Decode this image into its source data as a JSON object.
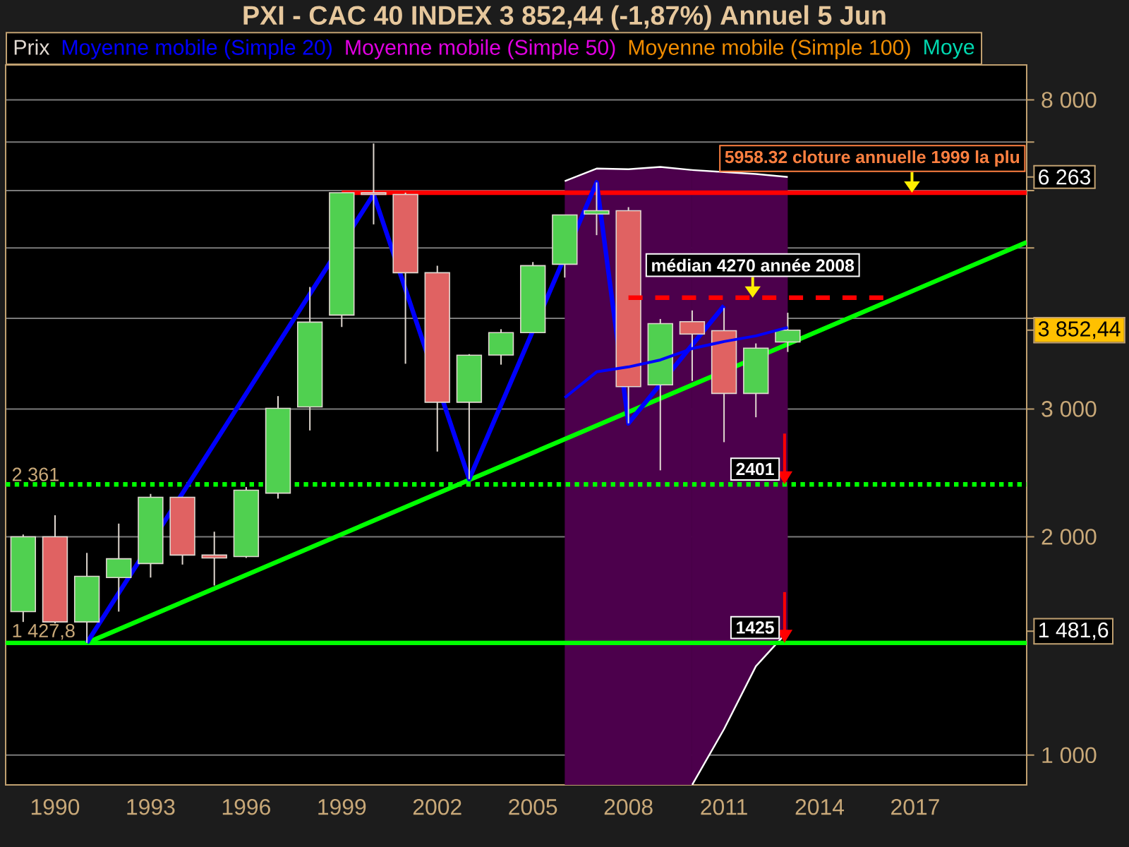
{
  "chart_data": {
    "type": "candlestick",
    "title": "PXI - CAC 40 INDEX    3 852,44 (-1,87%)    Annuel  5 Jun",
    "x": [
      1989,
      1990,
      1991,
      1992,
      1993,
      1994,
      1995,
      1996,
      1997,
      1998,
      1999,
      2000,
      2001,
      2002,
      2003,
      2004,
      2005,
      2006,
      2007,
      2008,
      2009,
      2010,
      2011,
      2012,
      2013
    ],
    "series": [
      {
        "name": "Prix",
        "color": "#e0d8d0",
        "colors": [
          "#50d050",
          "#e06262",
          "#50d050",
          "#50d050",
          "#50d050",
          "#e06262",
          "#e06262",
          "#50d050",
          "#50d050",
          "#50d050",
          "#50d050",
          "#e06262",
          "#e06262",
          "#e06262",
          "#50d050",
          "#50d050",
          "#50d050",
          "#50d050",
          "#50d050",
          "#e06262",
          "#50d050",
          "#e06262",
          "#e06262",
          "#50d050",
          "#50d050"
        ],
        "ohlc": [
          [
            1577,
            2014,
            1526,
            2000
          ],
          [
            2000,
            2141,
            1519,
            1526
          ],
          [
            1526,
            1900,
            1428,
            1764
          ],
          [
            1757,
            2085,
            1577,
            1865
          ],
          [
            1837,
            2291,
            1757,
            2267
          ],
          [
            2267,
            2270,
            1831,
            1887
          ],
          [
            1887,
            2032,
            1713,
            1870
          ],
          [
            1878,
            2342,
            1870,
            2318
          ],
          [
            2297,
            3125,
            2257,
            3006
          ],
          [
            3020,
            4418,
            2802,
            3952
          ],
          [
            4041,
            5960,
            3892,
            5958.32
          ],
          [
            5958,
            6966,
            5389,
            5926
          ],
          [
            5926,
            5960,
            3463,
            4623
          ],
          [
            4623,
            4727,
            2620,
            3065
          ],
          [
            3065,
            3570,
            2401,
            3558
          ],
          [
            3560,
            3864,
            3453,
            3823
          ],
          [
            3823,
            4782,
            3823,
            4727
          ],
          [
            4749,
            5553,
            4552,
            5553
          ],
          [
            5568,
            6157,
            5208,
            5628
          ],
          [
            5628,
            5693,
            2866,
            3220
          ],
          [
            3238,
            3992,
            2469,
            3933
          ],
          [
            3957,
            4101,
            3279,
            3805
          ],
          [
            3846,
            4133,
            2700,
            3152
          ],
          [
            3152,
            3694,
            2922,
            3639
          ],
          [
            3711,
            4071,
            3595,
            3852.44
          ]
        ]
      },
      {
        "name": "Moyenne mobile (Simple 20)",
        "type": "line",
        "color": "#0000ff",
        "x": [
          2006,
          2007,
          2008,
          2009,
          2010,
          2011,
          2012,
          2013
        ],
        "values": [
          3109,
          3375,
          3428,
          3505,
          3634,
          3716,
          3783,
          3886
        ],
        "upper": [
          null,
          null,
          null,
          null,
          6404,
          6362,
          6324,
          6263
        ],
        "lower": [
          null,
          null,
          null,
          null,
          910,
          1086,
          1326,
          1481.6
        ]
      },
      {
        "type": "area",
        "color": "#4c004c",
        "x": [
          2006,
          2007,
          2008,
          2009,
          2010
        ],
        "values": [
          6183,
          6434,
          6419,
          6468,
          6404
        ]
      },
      {
        "name": "Moyenne mobile (Simple 50)",
        "type": "line",
        "color": "#e000e0",
        "values": [
          null,
          null,
          null,
          null,
          null,
          null,
          null,
          null,
          null,
          null,
          null,
          null,
          null,
          null,
          null,
          null,
          null,
          null,
          null,
          null,
          null,
          null,
          null,
          null,
          null
        ]
      },
      {
        "name": "Moyenne mobile (Simple 100)",
        "type": "line",
        "color": "#f08c00",
        "values": [
          null,
          null,
          null,
          null,
          null,
          null,
          null,
          null,
          null,
          null,
          null,
          null,
          null,
          null,
          null,
          null,
          null,
          null,
          null,
          null,
          null,
          null,
          null,
          null,
          null
        ]
      },
      {
        "name": "Moye",
        "type": "line",
        "color": "#00d8b0",
        "values": [
          null,
          null,
          null,
          null,
          null,
          null,
          null,
          null,
          null,
          null,
          null,
          null,
          null,
          null,
          null,
          null,
          null,
          null,
          null,
          null,
          null,
          null,
          null,
          null,
          null
        ]
      },
      {
        "type": "line",
        "color": "#ff0000",
        "x": [
          1999,
          2020.5
        ],
        "values": [
          5958.32,
          5958.32
        ]
      },
      {
        "type": "line",
        "color": "#ff0000",
        "line_style": "dashed",
        "x": [
          2008,
          2016
        ],
        "values": [
          4270,
          4270
        ]
      },
      {
        "type": "line",
        "color": "#00ff00",
        "x": [
          1991,
          2020.5
        ],
        "values": [
          1428,
          5091
        ]
      },
      {
        "type": "line",
        "color": "#0000ff",
        "x": [
          1991,
          2000,
          2003,
          2007,
          2008,
          2011
        ],
        "values": [
          1428,
          5929,
          2401,
          6157,
          2866,
          4163
        ]
      }
    ],
    "ref_lines": [
      {
        "axis": "y",
        "value": 2361,
        "label": "2 361",
        "color": "#00ff00",
        "line_style": "dotted"
      },
      {
        "axis": "y",
        "value": 1427.8,
        "label": "1 427,8",
        "color": "#00ff00",
        "line_style": "solid"
      }
    ],
    "annotations": [
      {
        "text": "5958.32 cloture annuelle 1999  la plu",
        "x": 2016.9,
        "y": 5958.32
      },
      {
        "text": "médian 4270  année 2008",
        "x": 2011.9,
        "y": 4270
      },
      {
        "text": "2401",
        "x": 2012.9,
        "y": 2361
      },
      {
        "text": "1425",
        "x": 2012.9,
        "y": 1427.8
      }
    ],
    "xlim": [
      1988.45,
      2020.5
    ],
    "ylim": [
      910,
      8940
    ],
    "xticks": [
      1990,
      1993,
      1996,
      1999,
      2002,
      2005,
      2008,
      2011,
      2014,
      2017
    ],
    "yticks": [
      {
        "value": 1000,
        "label": "1 000"
      },
      {
        "value": 1481.6,
        "label": "1 481,6"
      },
      {
        "value": 2000,
        "label": "2 000"
      },
      {
        "value": 3000,
        "label": "3 000"
      },
      {
        "value": 3852.44,
        "label": "3 852,44"
      },
      {
        "value": 4000,
        "label": null
      },
      {
        "value": 5000,
        "label": null
      },
      {
        "value": 6000,
        "label": null
      },
      {
        "value": 6263,
        "label": "6 263"
      },
      {
        "value": 7000,
        "label": null
      },
      {
        "value": 8000,
        "label": "8 000"
      }
    ],
    "log": "y",
    "grid": "y",
    "legend": "top"
  }
}
